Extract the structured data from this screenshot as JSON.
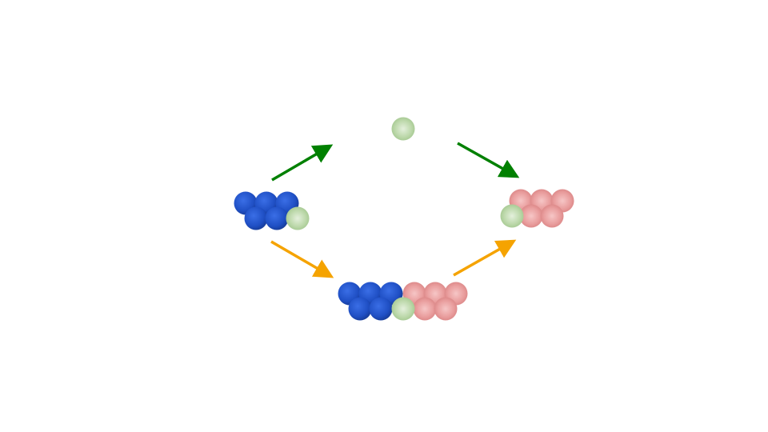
{
  "colors": {
    "blue_atom": "#1f4fc4",
    "pink_atom": "#e89a9a",
    "green_atom": "#b9d6a6",
    "direct_path_arrow": "#008000",
    "intermediate_path_arrow": "#f5a300",
    "background": "#ffffff"
  },
  "clusters": {
    "reactant": {
      "blue_atoms": 5,
      "green_atoms": 1,
      "pink_atoms": 0
    },
    "free_atom": {
      "blue_atoms": 0,
      "green_atoms": 1,
      "pink_atoms": 0
    },
    "product": {
      "blue_atoms": 0,
      "green_atoms": 1,
      "pink_atoms": 5
    },
    "intermediate": {
      "blue_atoms": 5,
      "green_atoms": 1,
      "pink_atoms": 5
    }
  },
  "arrows": [
    {
      "id": "reactant-to-free-atom",
      "color": "#008000"
    },
    {
      "id": "free-atom-to-product",
      "color": "#008000"
    },
    {
      "id": "reactant-to-intermediate",
      "color": "#f5a300"
    },
    {
      "id": "intermediate-to-product",
      "color": "#f5a300"
    }
  ]
}
